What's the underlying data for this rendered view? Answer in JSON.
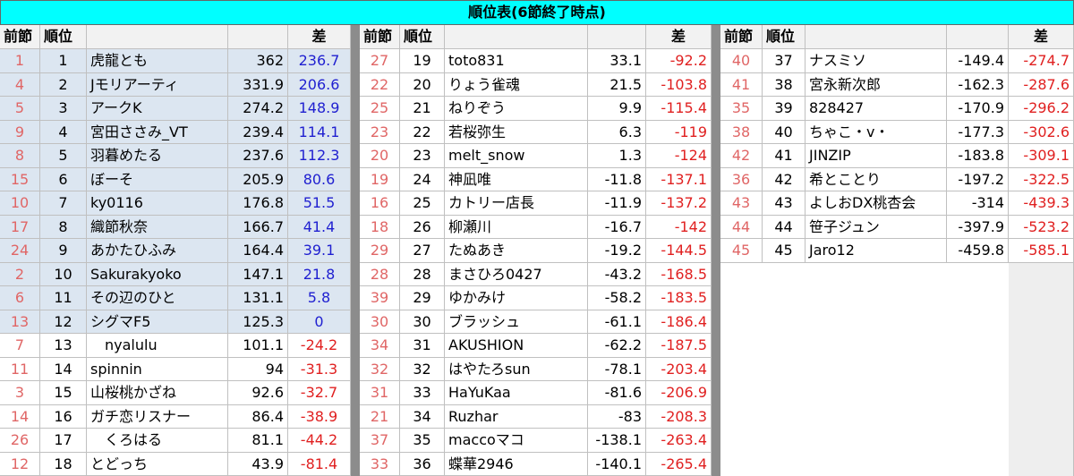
{
  "title": "順位表(6節終了時点)",
  "header": {
    "prev": "前節",
    "rank": "順位",
    "diff": "差"
  },
  "panels": [
    {
      "rows": [
        [
          1,
          1,
          "虎龍とも",
          362,
          236.7
        ],
        [
          4,
          2,
          "Jモリアーティ",
          331.9,
          206.6
        ],
        [
          5,
          3,
          "アークK",
          274.2,
          148.9
        ],
        [
          9,
          4,
          "宮田ささみ_VT",
          239.4,
          114.1
        ],
        [
          8,
          5,
          "羽暮めたる",
          237.6,
          112.3
        ],
        [
          15,
          6,
          "ぼーそ",
          205.9,
          80.6
        ],
        [
          10,
          7,
          "ky0116",
          176.8,
          51.5
        ],
        [
          17,
          8,
          "織節秋奈",
          166.7,
          41.4
        ],
        [
          24,
          9,
          "あかたひふみ",
          164.4,
          39.1
        ],
        [
          2,
          10,
          "Sakurakyoko",
          147.1,
          21.8
        ],
        [
          6,
          11,
          "その辺のひと",
          131.1,
          5.8
        ],
        [
          13,
          12,
          "シグマF5",
          125.3,
          0
        ],
        [
          7,
          13,
          "　nyalulu",
          101.1,
          -24.2
        ],
        [
          11,
          14,
          "spinnin",
          94,
          -31.3
        ],
        [
          3,
          15,
          "山桜桃かざね",
          92.6,
          -32.7
        ],
        [
          14,
          16,
          "ガチ恋リスナー",
          86.4,
          -38.9
        ],
        [
          26,
          17,
          "　くろはる",
          81.1,
          -44.2
        ],
        [
          12,
          18,
          "とどっち",
          43.9,
          -81.4
        ]
      ]
    },
    {
      "rows": [
        [
          27,
          19,
          "toto831",
          33.1,
          -92.2
        ],
        [
          22,
          20,
          "りょう雀魂",
          21.5,
          -103.8
        ],
        [
          25,
          21,
          "ねりぞう",
          9.9,
          -115.4
        ],
        [
          23,
          22,
          "若桜弥生",
          6.3,
          -119
        ],
        [
          20,
          23,
          "melt_snow",
          1.3,
          -124
        ],
        [
          19,
          24,
          "神凪唯",
          -11.8,
          -137.1
        ],
        [
          16,
          25,
          "カトリー店長",
          -11.9,
          -137.2
        ],
        [
          18,
          26,
          "柳瀬川",
          -16.7,
          -142
        ],
        [
          29,
          27,
          "たぬあき",
          -19.2,
          -144.5
        ],
        [
          28,
          28,
          "まさひろ0427",
          -43.2,
          -168.5
        ],
        [
          39,
          29,
          "ゆかみけ",
          -58.2,
          -183.5
        ],
        [
          30,
          30,
          "ブラッシュ",
          -61.1,
          -186.4
        ],
        [
          34,
          31,
          "AKUSHION",
          -62.2,
          -187.5
        ],
        [
          32,
          32,
          "はやたろsun",
          -78.1,
          -203.4
        ],
        [
          31,
          33,
          "HaYuKaa",
          -81.6,
          -206.9
        ],
        [
          21,
          34,
          "Ruzhar",
          -83,
          -208.3
        ],
        [
          37,
          35,
          "maccoマコ",
          -138.1,
          -263.4
        ],
        [
          33,
          36,
          "蝶華2946",
          -140.1,
          -265.4
        ]
      ]
    },
    {
      "rows": [
        [
          40,
          37,
          "ナスミソ",
          -149.4,
          -274.7
        ],
        [
          41,
          38,
          "宮永新次郎",
          -162.3,
          -287.6
        ],
        [
          35,
          39,
          "828427",
          -170.9,
          -296.2
        ],
        [
          38,
          40,
          "ちゃこ・v・",
          -177.3,
          -302.6
        ],
        [
          42,
          41,
          "JINZIP",
          -183.8,
          -309.1
        ],
        [
          36,
          42,
          "希とことり",
          -197.2,
          -322.5
        ],
        [
          43,
          43,
          "よしおDX桃杏会",
          -314,
          -439.3
        ],
        [
          44,
          44,
          "笹子ジュン",
          -397.9,
          -523.2
        ],
        [
          45,
          45,
          "Jaro12",
          -459.8,
          -585.1
        ]
      ]
    }
  ]
}
